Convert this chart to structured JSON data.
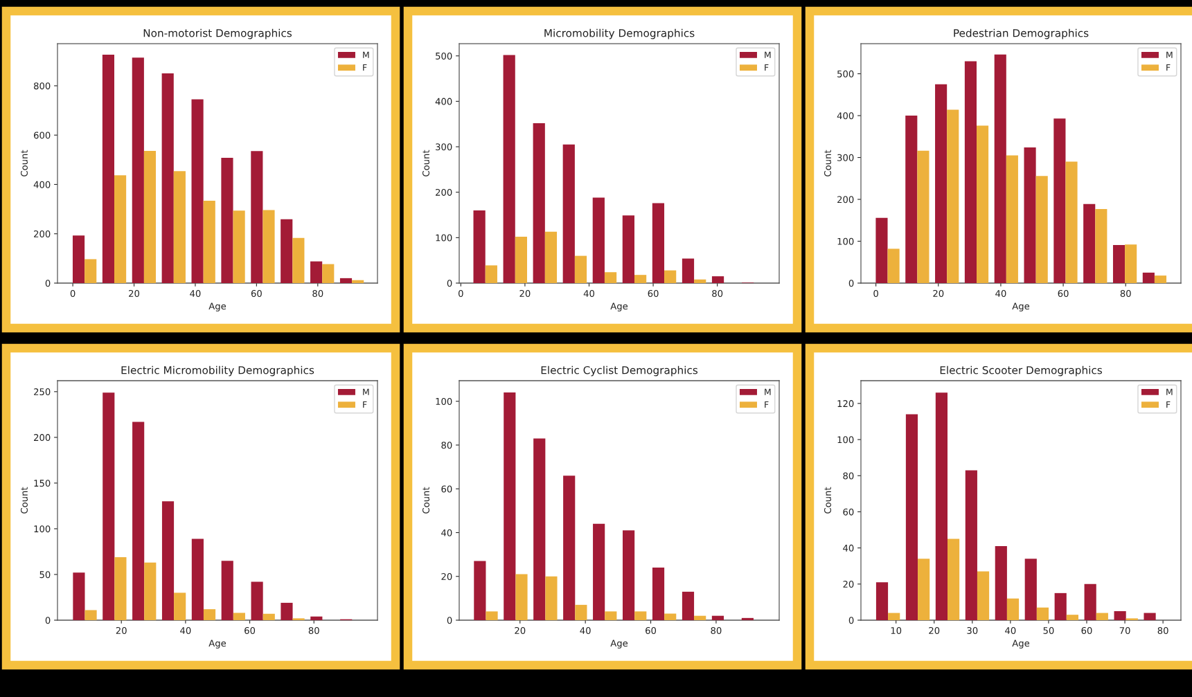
{
  "chart_data": [
    {
      "type": "histogram",
      "title": "Non-motorist Demographics",
      "xlabel": "Age",
      "ylabel": "Count",
      "bins": [
        -1,
        8.7,
        18.4,
        28.1,
        37.8,
        47.5,
        57.2,
        66.9,
        76.6,
        86.3,
        96
      ],
      "xlim": [
        -5,
        99.5
      ],
      "ylim": [
        0,
        971
      ],
      "xticks": [
        0,
        20,
        40,
        60,
        80
      ],
      "yticks": [
        0,
        200,
        400,
        600,
        800
      ],
      "legend": "top right",
      "series": [
        {
          "name": "M",
          "color": "#a31b36",
          "values": [
            193,
            926,
            914,
            850,
            745,
            508,
            535,
            259,
            88,
            20
          ]
        },
        {
          "name": "F",
          "color": "#edb13c",
          "values": [
            97,
            437,
            536,
            454,
            334,
            294,
            296,
            183,
            77,
            12
          ]
        }
      ]
    },
    {
      "type": "histogram",
      "title": "Micromobility Demographics",
      "xlabel": "Age",
      "ylabel": "Count",
      "bins": [
        3,
        12.3,
        21.6,
        30.9,
        40.2,
        49.5,
        58.8,
        68.1,
        77.4,
        86.7,
        96
      ],
      "xlim": [
        -0.5,
        99.3
      ],
      "ylim": [
        0,
        527
      ],
      "xticks": [
        0,
        20,
        40,
        60,
        80
      ],
      "yticks": [
        0,
        100,
        200,
        300,
        400,
        500
      ],
      "legend": "top right",
      "series": [
        {
          "name": "M",
          "color": "#a31b36",
          "values": [
            160,
            502,
            352,
            305,
            188,
            149,
            176,
            54,
            15,
            1
          ]
        },
        {
          "name": "F",
          "color": "#edb13c",
          "values": [
            39,
            102,
            113,
            60,
            24,
            18,
            28,
            8,
            0,
            0
          ]
        }
      ]
    },
    {
      "type": "histogram",
      "title": "Pedestrian Demographics",
      "xlabel": "Age",
      "ylabel": "Count",
      "bins": [
        -1,
        8.5,
        18,
        27.5,
        37,
        46.5,
        56,
        65.5,
        75,
        84.5,
        94
      ],
      "xlim": [
        -4.8,
        97.7
      ],
      "ylim": [
        0,
        572
      ],
      "xticks": [
        0,
        20,
        40,
        60,
        80
      ],
      "yticks": [
        0,
        100,
        200,
        300,
        400,
        500
      ],
      "legend": "top right",
      "series": [
        {
          "name": "M",
          "color": "#a31b36",
          "values": [
            156,
            400,
            475,
            530,
            546,
            324,
            393,
            189,
            91,
            25
          ]
        },
        {
          "name": "F",
          "color": "#edb13c",
          "values": [
            82,
            316,
            414,
            376,
            305,
            256,
            290,
            177,
            92,
            18
          ]
        }
      ]
    },
    {
      "type": "histogram",
      "title": "Electric Micromobility Demographics",
      "xlabel": "Age",
      "ylabel": "Count",
      "bins": [
        4,
        13.25,
        22.5,
        31.75,
        41,
        50.25,
        59.5,
        68.75,
        78,
        87.25,
        96.5
      ],
      "xlim": [
        0.1,
        99.8
      ],
      "ylim": [
        0,
        262
      ],
      "xticks": [
        20,
        40,
        60,
        80
      ],
      "yticks": [
        0,
        50,
        100,
        150,
        200,
        250
      ],
      "legend": "top right",
      "series": [
        {
          "name": "M",
          "color": "#a31b36",
          "values": [
            52,
            249,
            217,
            130,
            89,
            65,
            42,
            19,
            4,
            1
          ]
        },
        {
          "name": "F",
          "color": "#edb13c",
          "values": [
            11,
            69,
            63,
            30,
            12,
            8,
            7,
            2,
            0,
            0
          ]
        }
      ]
    },
    {
      "type": "histogram",
      "title": "Electric Cyclist Demographics",
      "xlabel": "Age",
      "ylabel": "Count",
      "bins": [
        5,
        14.1,
        23.2,
        32.3,
        41.4,
        50.5,
        59.6,
        68.7,
        77.8,
        86.9,
        96
      ],
      "xlim": [
        1.4,
        99.3
      ],
      "ylim": [
        0,
        109.4
      ],
      "xticks": [
        20,
        40,
        60,
        80
      ],
      "yticks": [
        0,
        20,
        40,
        60,
        80,
        100
      ],
      "legend": "top right",
      "series": [
        {
          "name": "M",
          "color": "#a31b36",
          "values": [
            27,
            104,
            83,
            66,
            44,
            41,
            24,
            13,
            2,
            1
          ]
        },
        {
          "name": "F",
          "color": "#edb13c",
          "values": [
            4,
            21,
            20,
            7,
            4,
            4,
            3,
            2,
            0,
            0
          ]
        }
      ]
    },
    {
      "type": "histogram",
      "title": "Electric Scooter Demographics",
      "xlabel": "Age",
      "ylabel": "Count",
      "bins": [
        4,
        11.8,
        19.6,
        27.4,
        35.2,
        43,
        50.8,
        58.6,
        66.4,
        74.2,
        82
      ],
      "xlim": [
        0.8,
        84.7
      ],
      "ylim": [
        0,
        132.6
      ],
      "xticks": [
        10,
        20,
        30,
        40,
        50,
        60,
        70,
        80
      ],
      "yticks": [
        0,
        20,
        40,
        60,
        80,
        100,
        120
      ],
      "legend": "top right",
      "series": [
        {
          "name": "M",
          "color": "#a31b36",
          "values": [
            21,
            114,
            126,
            83,
            41,
            34,
            15,
            20,
            5,
            4
          ]
        },
        {
          "name": "F",
          "color": "#edb13c",
          "values": [
            4,
            34,
            45,
            27,
            12,
            7,
            3,
            4,
            1,
            0
          ]
        }
      ]
    }
  ]
}
